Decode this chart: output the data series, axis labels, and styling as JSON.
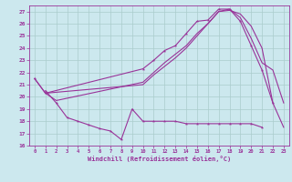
{
  "xlabel": "Windchill (Refroidissement éolien,°C)",
  "bg_color": "#cce8ee",
  "grid_color": "#aacccc",
  "line_color": "#993399",
  "xlim": [
    -0.5,
    23.5
  ],
  "ylim": [
    16,
    27.5
  ],
  "yticks": [
    16,
    17,
    18,
    19,
    20,
    21,
    22,
    23,
    24,
    25,
    26,
    27
  ],
  "xticks": [
    0,
    1,
    2,
    3,
    4,
    5,
    6,
    7,
    8,
    9,
    10,
    11,
    12,
    13,
    14,
    15,
    16,
    17,
    18,
    19,
    20,
    21,
    22,
    23
  ],
  "series_no_marker_1": {
    "x": [
      0,
      1,
      2,
      10,
      11,
      12,
      13,
      14,
      15,
      16,
      17,
      18,
      19,
      20,
      21,
      22,
      23
    ],
    "y": [
      21.5,
      20.3,
      19.7,
      21.2,
      22.0,
      22.8,
      23.5,
      24.2,
      25.2,
      26.0,
      27.0,
      27.2,
      26.5,
      24.8,
      22.8,
      22.2,
      19.5
    ]
  },
  "series_no_marker_2": {
    "x": [
      1,
      10,
      11,
      12,
      13,
      14,
      15,
      16,
      17,
      18,
      19,
      20,
      21,
      22,
      23
    ],
    "y": [
      20.3,
      21.0,
      21.8,
      22.5,
      23.2,
      24.0,
      25.0,
      26.0,
      27.0,
      27.1,
      26.8,
      25.8,
      24.0,
      19.5,
      17.5
    ]
  },
  "series_marker_top": {
    "x": [
      0,
      1,
      10,
      11,
      12,
      13,
      14,
      15,
      16,
      17,
      18,
      19,
      20,
      21,
      22
    ],
    "y": [
      21.5,
      20.3,
      22.3,
      23.0,
      23.8,
      24.2,
      25.2,
      26.2,
      26.3,
      27.2,
      27.2,
      26.2,
      24.2,
      22.2,
      19.5
    ]
  },
  "series_marker_bottom": {
    "x": [
      1,
      2,
      3,
      4,
      5,
      6,
      7,
      8,
      9,
      10,
      11,
      12,
      13,
      14,
      15,
      16,
      17,
      18,
      19,
      20,
      21
    ],
    "y": [
      20.5,
      19.5,
      18.3,
      18.0,
      17.7,
      17.4,
      17.2,
      16.5,
      19.0,
      18.0,
      18.0,
      18.0,
      18.0,
      17.8,
      17.8,
      17.8,
      17.8,
      17.8,
      17.8,
      17.8,
      17.5
    ]
  }
}
